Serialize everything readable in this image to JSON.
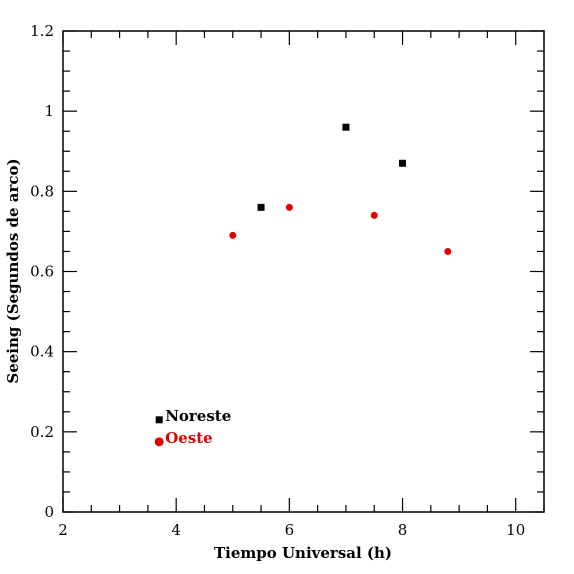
{
  "chart_data": {
    "type": "scatter",
    "xlabel": "Tiempo Universal (h)",
    "ylabel": "Seeing (Segundos de arco)",
    "xlim": [
      2,
      10.5
    ],
    "ylim": [
      0,
      1.2
    ],
    "x_ticks": [
      "2",
      "4",
      "6",
      "8",
      "10"
    ],
    "y_ticks": [
      "0",
      "0.2",
      "0.4",
      "0.6",
      "0.8",
      "1",
      "1.2"
    ],
    "grid": false,
    "legend_position": "bottom-left",
    "series": [
      {
        "name": "Noreste",
        "marker": "square",
        "color": "#000000",
        "points": [
          {
            "x": 5.5,
            "y": 0.76
          },
          {
            "x": 7.0,
            "y": 0.96
          },
          {
            "x": 8.0,
            "y": 0.87
          }
        ]
      },
      {
        "name": "Oeste",
        "marker": "circle",
        "color": "#e00000",
        "points": [
          {
            "x": 5.0,
            "y": 0.69
          },
          {
            "x": 6.0,
            "y": 0.76
          },
          {
            "x": 7.5,
            "y": 0.74
          },
          {
            "x": 8.8,
            "y": 0.65
          }
        ]
      }
    ]
  }
}
